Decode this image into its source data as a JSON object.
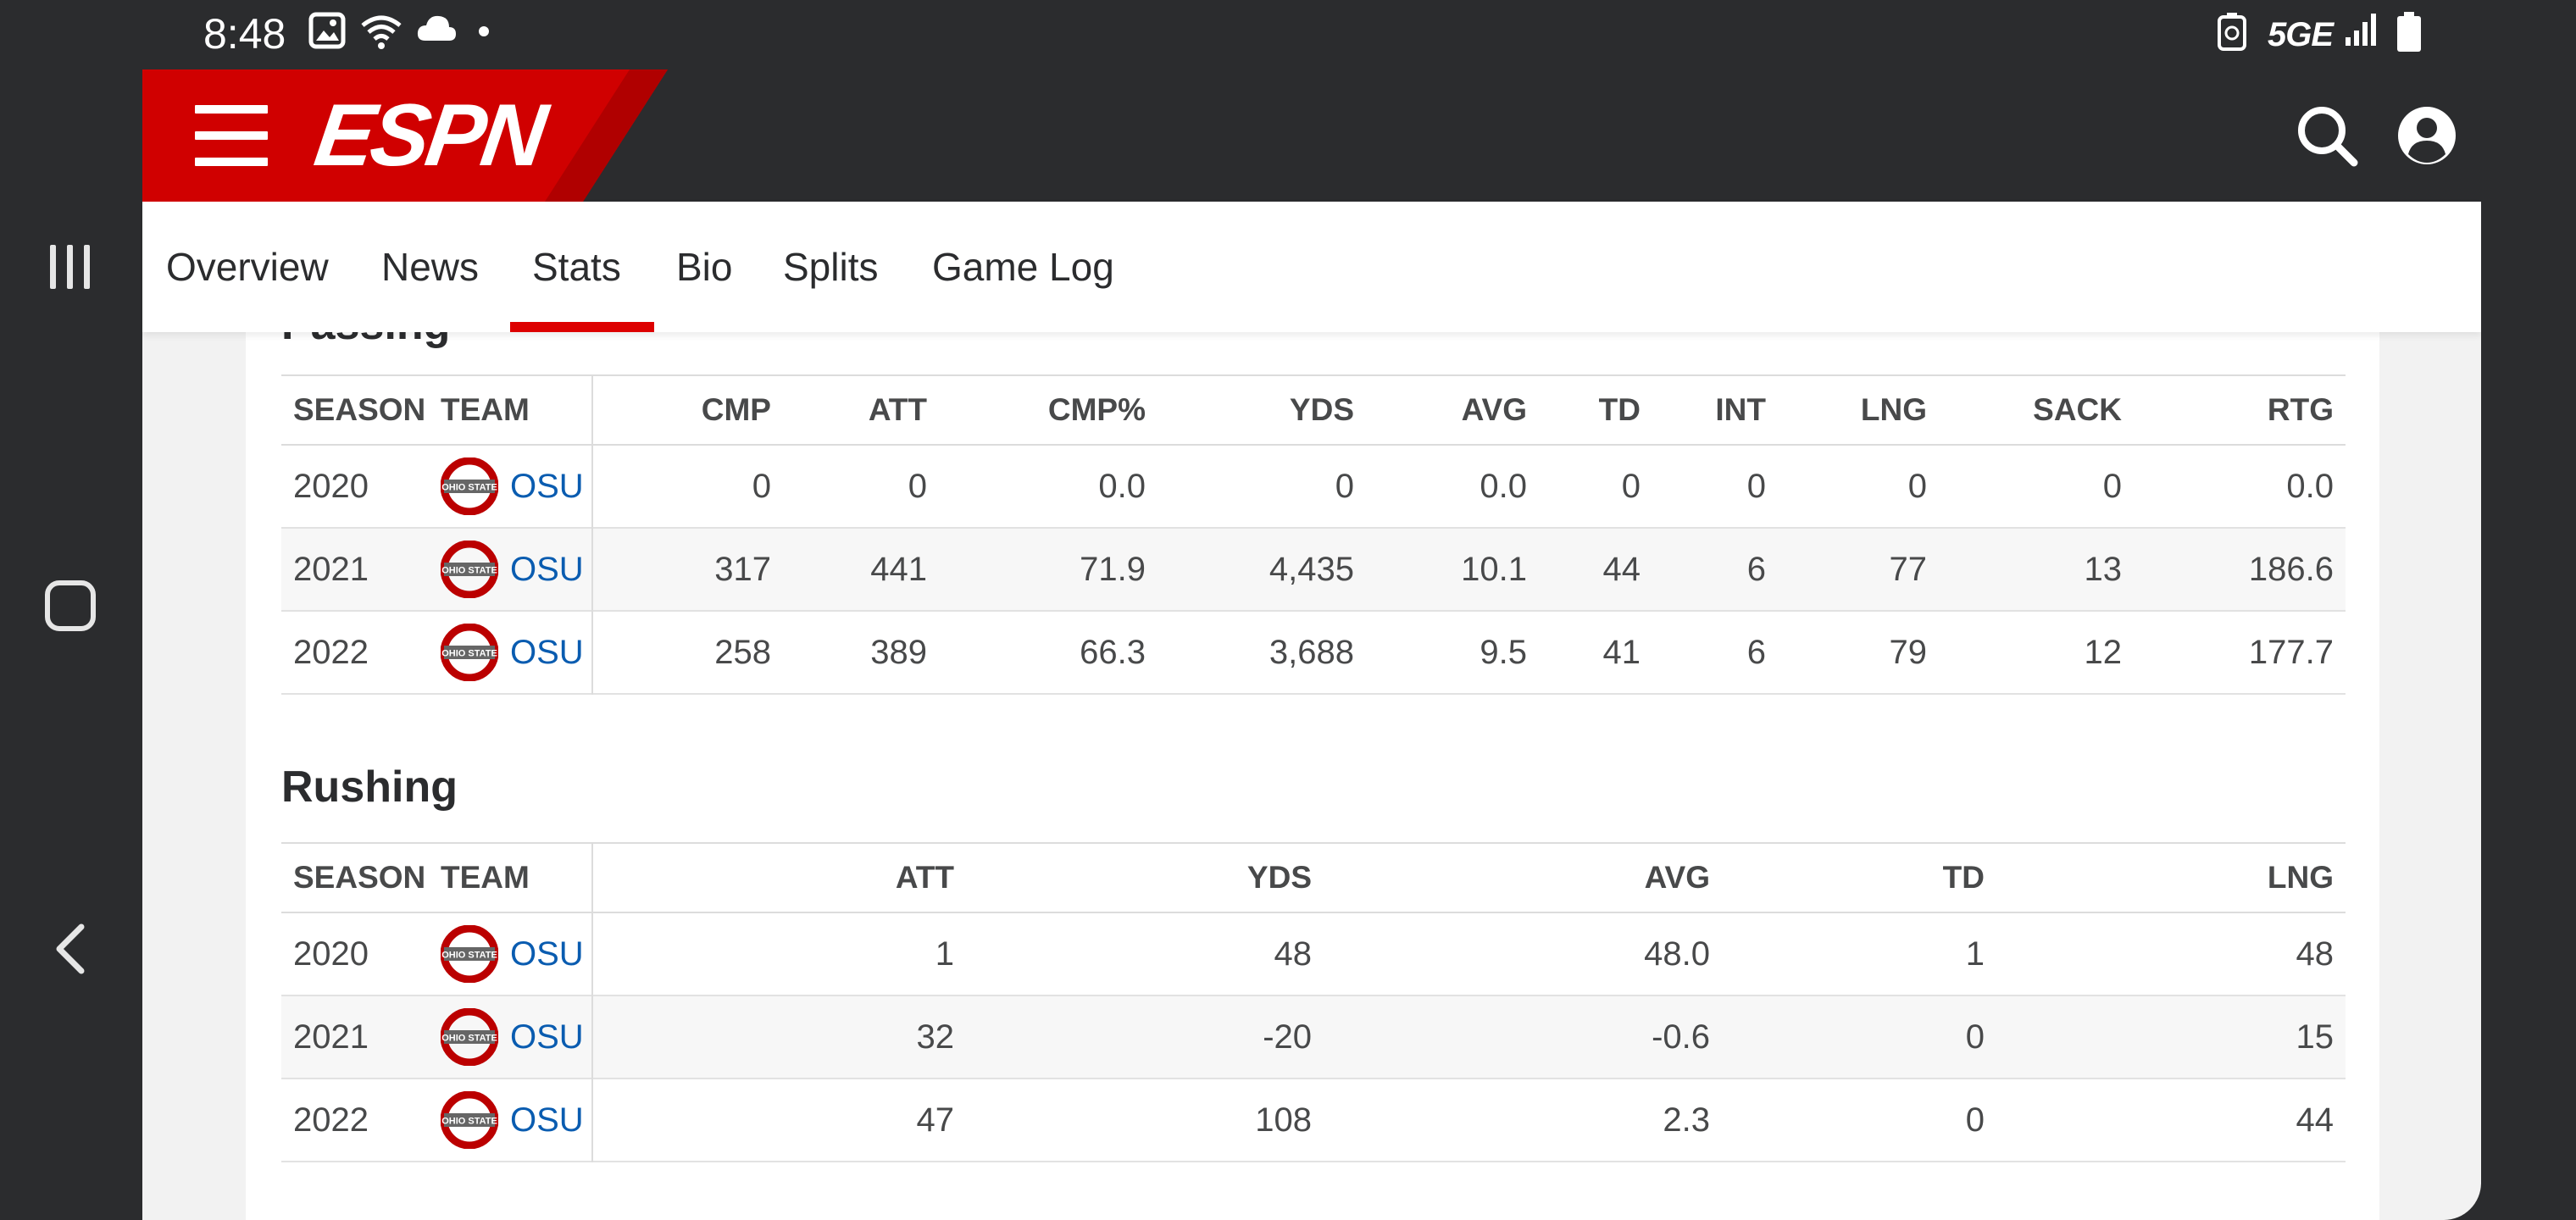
{
  "status_bar": {
    "time": "8:48",
    "network": "5GE",
    "icons": [
      "image-icon",
      "wifi-icon",
      "cloud-icon",
      "dot-icon",
      "battery-saver-icon",
      "signal-icon",
      "battery-icon"
    ]
  },
  "nav": {
    "icons": [
      "recents-icon",
      "home-icon",
      "back-icon"
    ]
  },
  "header": {
    "logo_text": "ESPN",
    "brand_color": "#d00000",
    "icons": [
      "menu-icon",
      "search-icon",
      "profile-icon"
    ]
  },
  "tabs": [
    {
      "label": "Overview"
    },
    {
      "label": "News"
    },
    {
      "label": "Stats",
      "active": true
    },
    {
      "label": "Bio"
    },
    {
      "label": "Splits"
    },
    {
      "label": "Game Log"
    }
  ],
  "passing": {
    "title": "Passing",
    "columns": [
      "SEASON",
      "TEAM",
      "CMP",
      "ATT",
      "CMP%",
      "YDS",
      "AVG",
      "TD",
      "INT",
      "LNG",
      "SACK",
      "RTG"
    ],
    "rows": [
      {
        "season": "2020",
        "team": "OSU",
        "cmp": "0",
        "att": "0",
        "cmp_pct": "0.0",
        "yds": "0",
        "avg": "0.0",
        "td": "0",
        "int": "0",
        "lng": "0",
        "sack": "0",
        "rtg": "0.0"
      },
      {
        "season": "2021",
        "team": "OSU",
        "cmp": "317",
        "att": "441",
        "cmp_pct": "71.9",
        "yds": "4,435",
        "avg": "10.1",
        "td": "44",
        "int": "6",
        "lng": "77",
        "sack": "13",
        "rtg": "186.6"
      },
      {
        "season": "2022",
        "team": "OSU",
        "cmp": "258",
        "att": "389",
        "cmp_pct": "66.3",
        "yds": "3,688",
        "avg": "9.5",
        "td": "41",
        "int": "6",
        "lng": "79",
        "sack": "12",
        "rtg": "177.7"
      }
    ]
  },
  "rushing": {
    "title": "Rushing",
    "columns": [
      "SEASON",
      "TEAM",
      "ATT",
      "YDS",
      "AVG",
      "TD",
      "LNG"
    ],
    "rows": [
      {
        "season": "2020",
        "team": "OSU",
        "att": "1",
        "yds": "48",
        "avg": "48.0",
        "td": "1",
        "lng": "48"
      },
      {
        "season": "2021",
        "team": "OSU",
        "att": "32",
        "yds": "-20",
        "avg": "-0.6",
        "td": "0",
        "lng": "15"
      },
      {
        "season": "2022",
        "team": "OSU",
        "att": "47",
        "yds": "108",
        "avg": "2.3",
        "td": "0",
        "lng": "44"
      }
    ]
  },
  "team_logo": {
    "text": "OHIO STATE",
    "color": "#bb0000"
  }
}
